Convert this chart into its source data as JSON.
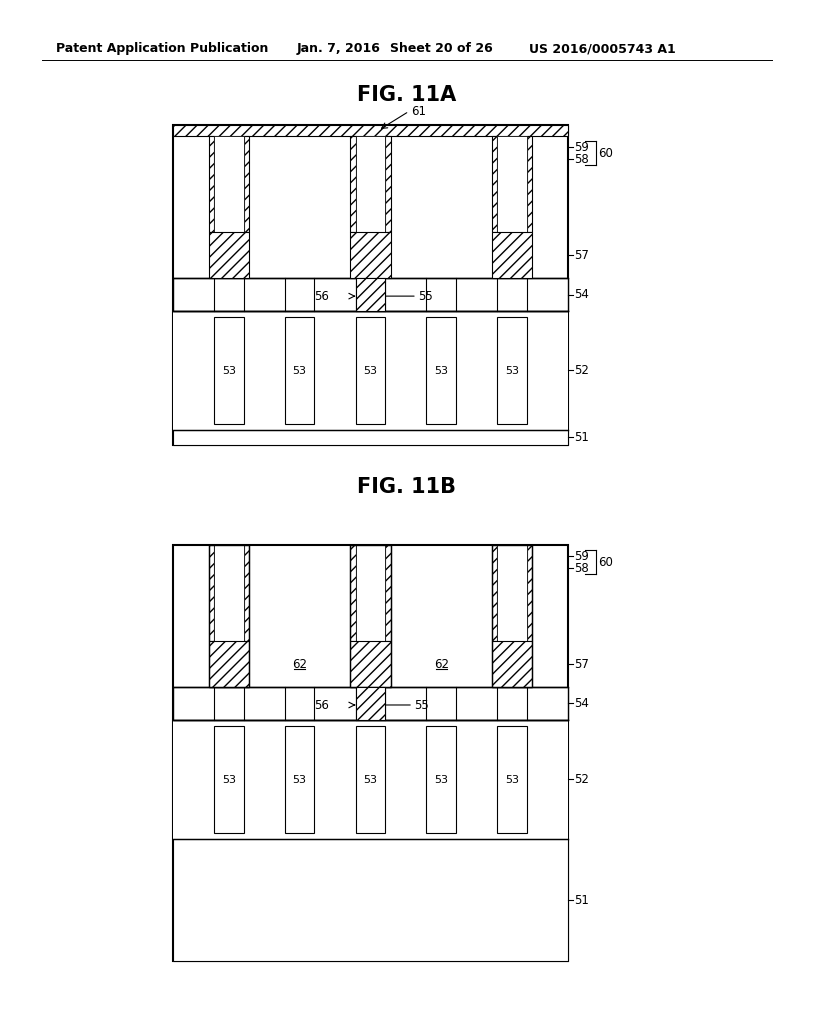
{
  "bg_color": "#ffffff",
  "header_text": "Patent Application Publication",
  "header_date": "Jan. 7, 2016",
  "header_sheet": "Sheet 20 of 26",
  "header_patent": "US 2016/0005743 A1",
  "fig_a_title": "FIG. 11A",
  "fig_b_title": "FIG. 11B"
}
